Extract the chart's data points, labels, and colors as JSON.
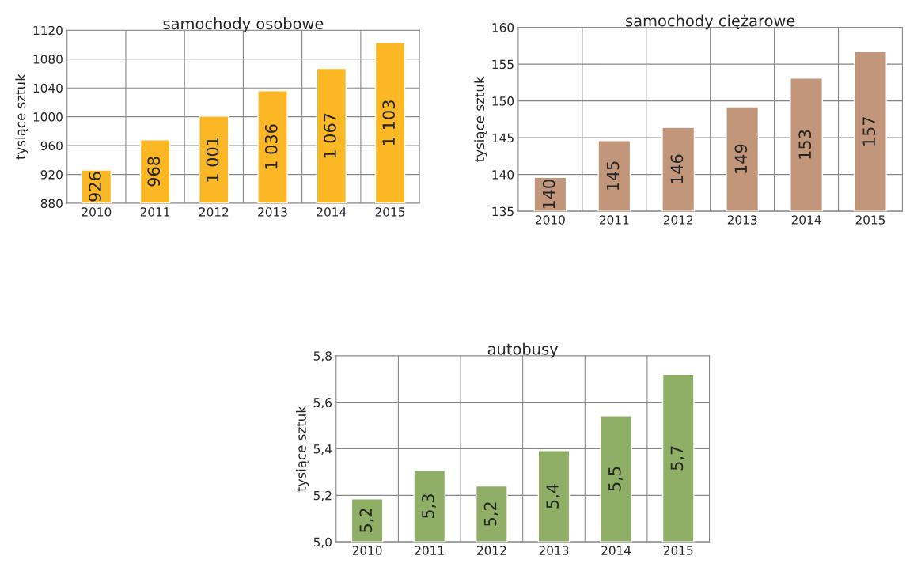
{
  "chart_data": [
    {
      "type": "bar",
      "title": "samochody osobowe",
      "ylabel": "tysiące sztuk",
      "categories": [
        "2010",
        "2011",
        "2012",
        "2013",
        "2014",
        "2015"
      ],
      "values": [
        926,
        968,
        1001,
        1036,
        1067,
        1103
      ],
      "value_labels": [
        "926",
        "968",
        "1 001",
        "1 036",
        "1 067",
        "1 103"
      ],
      "color": "#fcb724",
      "ylim": [
        880,
        1120
      ],
      "yticks": [
        880,
        920,
        960,
        1000,
        1040,
        1080,
        1120
      ],
      "grid": true
    },
    {
      "type": "bar",
      "title": "samochody ciężarowe",
      "ylabel": "tysiące sztuk",
      "categories": [
        "2010",
        "2011",
        "2012",
        "2013",
        "2014",
        "2015"
      ],
      "values": [
        139.6,
        144.6,
        146.4,
        149.2,
        153.1,
        156.7
      ],
      "value_labels": [
        "140",
        "145",
        "146",
        "149",
        "153",
        "157"
      ],
      "color": "#c2967a",
      "ylim": [
        135,
        160
      ],
      "yticks": [
        135,
        140,
        145,
        150,
        155,
        160
      ],
      "grid": true
    },
    {
      "type": "bar",
      "title": "autobusy",
      "ylabel": "tysiące sztuk",
      "categories": [
        "2010",
        "2011",
        "2012",
        "2013",
        "2014",
        "2015"
      ],
      "values": [
        5.185,
        5.307,
        5.24,
        5.392,
        5.542,
        5.72
      ],
      "value_labels": [
        "5,2",
        "5,3",
        "5,2",
        "5,4",
        "5,5",
        "5,7"
      ],
      "color": "#8fae66",
      "ylim": [
        5.0,
        5.8
      ],
      "yticks": [
        {
          "value": 5.0,
          "label": "5,0"
        },
        {
          "value": 5.2,
          "label": "5,2"
        },
        {
          "value": 5.4,
          "label": "5,4"
        },
        {
          "value": 5.6,
          "label": "5,6"
        },
        {
          "value": 5.8,
          "label": "5,8"
        }
      ],
      "grid": true
    }
  ]
}
